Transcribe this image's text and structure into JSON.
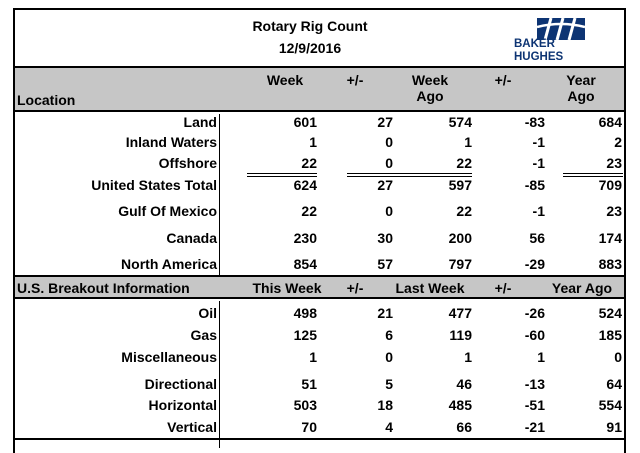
{
  "header": {
    "title": "Rotary Rig Count",
    "date": "12/9/2016",
    "logo_line1": "BAKER",
    "logo_line2": "HUGHES",
    "logo_color": "#0d3473"
  },
  "location_header": {
    "location": "Location",
    "week": "Week",
    "pm1": "+/-",
    "week_ago_1": "Week",
    "week_ago_2": "Ago",
    "pm2": "+/-",
    "year_ago_1": "Year",
    "year_ago_2": "Ago"
  },
  "location_rows": [
    {
      "label": "Land",
      "week": "601",
      "pm1": "27",
      "week_ago": "574",
      "pm2": "-83",
      "year_ago": "684"
    },
    {
      "label": "Inland Waters",
      "week": "1",
      "pm1": "0",
      "week_ago": "1",
      "pm2": "-1",
      "year_ago": "2"
    },
    {
      "label": "Offshore",
      "week": "22",
      "pm1": "0",
      "week_ago": "22",
      "pm2": "-1",
      "year_ago": "23"
    },
    {
      "label": "United States Total",
      "week": "624",
      "pm1": "27",
      "week_ago": "597",
      "pm2": "-85",
      "year_ago": "709"
    },
    {
      "label": "Gulf Of Mexico",
      "week": "22",
      "pm1": "0",
      "week_ago": "22",
      "pm2": "-1",
      "year_ago": "23"
    },
    {
      "label": "Canada",
      "week": "230",
      "pm1": "30",
      "week_ago": "200",
      "pm2": "56",
      "year_ago": "174"
    },
    {
      "label": "North America",
      "week": "854",
      "pm1": "57",
      "week_ago": "797",
      "pm2": "-29",
      "year_ago": "883"
    }
  ],
  "breakout_header": {
    "label": "U.S. Breakout Information",
    "this_week": "This Week",
    "pm1": "+/-",
    "last_week": "Last Week",
    "pm2": "+/-",
    "year_ago": "Year Ago"
  },
  "breakout_rows": [
    {
      "label": "Oil",
      "week": "498",
      "pm1": "21",
      "week_ago": "477",
      "pm2": "-26",
      "year_ago": "524"
    },
    {
      "label": "Gas",
      "week": "125",
      "pm1": "6",
      "week_ago": "119",
      "pm2": "-60",
      "year_ago": "185"
    },
    {
      "label": "Miscellaneous",
      "week": "1",
      "pm1": "0",
      "week_ago": "1",
      "pm2": "1",
      "year_ago": "0"
    },
    {
      "label": "Directional",
      "week": "51",
      "pm1": "5",
      "week_ago": "46",
      "pm2": "-13",
      "year_ago": "64"
    },
    {
      "label": "Horizontal",
      "week": "503",
      "pm1": "18",
      "week_ago": "485",
      "pm2": "-51",
      "year_ago": "554"
    },
    {
      "label": "Vertical",
      "week": "70",
      "pm1": "4",
      "week_ago": "66",
      "pm2": "-21",
      "year_ago": "91"
    }
  ]
}
